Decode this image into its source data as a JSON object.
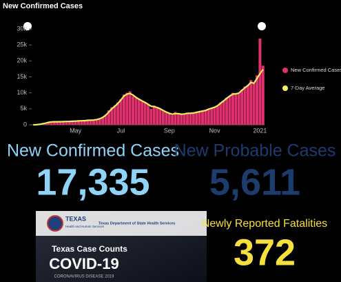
{
  "chart_data": {
    "type": "bar",
    "title": "New Confirmed Cases",
    "categories": [
      null,
      null,
      null,
      null,
      null,
      null,
      null,
      null,
      null,
      null,
      null,
      null,
      null,
      null,
      "May",
      null,
      null,
      null,
      null,
      null,
      null,
      null,
      null,
      null,
      null,
      null,
      null,
      null,
      null,
      "Jul",
      null,
      null,
      null,
      null,
      null,
      null,
      null,
      null,
      null,
      null,
      null,
      null,
      null,
      null,
      null,
      "Sep",
      null,
      null,
      null,
      null,
      null,
      null,
      null,
      null,
      null,
      null,
      null,
      null,
      null,
      null,
      "Nov",
      null,
      null,
      null,
      null,
      null,
      null,
      null,
      null,
      null,
      null,
      null,
      null,
      null,
      null,
      "2021",
      null
    ],
    "series": [
      {
        "name": "New Confirmed Cases",
        "type": "bar",
        "color": "#e0306e",
        "values": [
          10,
          50,
          200,
          400,
          600,
          900,
          1000,
          1000,
          900,
          1000,
          1100,
          1000,
          1100,
          1200,
          1100,
          1300,
          1200,
          1400,
          1500,
          1500,
          1600,
          1700,
          2000,
          2500,
          3200,
          4500,
          5500,
          6000,
          7000,
          8000,
          9500,
          10000,
          10500,
          9000,
          8500,
          8000,
          7500,
          7000,
          6500,
          5000,
          6000,
          5500,
          5000,
          4500,
          4000,
          3500,
          3000,
          4000,
          3500,
          3200,
          3500,
          3800,
          3500,
          3800,
          4000,
          4200,
          4300,
          4500,
          5000,
          5200,
          5500,
          6000,
          7000,
          7500,
          8500,
          9000,
          10000,
          9500,
          10000,
          11000,
          12000,
          12500,
          14000,
          13000,
          15500,
          27000,
          18500
        ]
      },
      {
        "name": "7-Day Average",
        "type": "line",
        "color": "#f5f060",
        "values": [
          10,
          30,
          120,
          300,
          500,
          750,
          900,
          950,
          950,
          970,
          1000,
          1030,
          1050,
          1100,
          1150,
          1200,
          1250,
          1300,
          1400,
          1450,
          1500,
          1650,
          1900,
          2300,
          3000,
          4000,
          5000,
          5800,
          6700,
          7800,
          9000,
          9600,
          9800,
          9300,
          8600,
          8000,
          7500,
          7000,
          6400,
          5800,
          5700,
          5400,
          5000,
          4500,
          4000,
          3600,
          3300,
          3500,
          3500,
          3300,
          3400,
          3600,
          3600,
          3700,
          3900,
          4100,
          4300,
          4500,
          4900,
          5200,
          5500,
          6000,
          6800,
          7500,
          8300,
          9000,
          9600,
          9700,
          9900,
          10800,
          11600,
          12300,
          13300,
          13000,
          14500,
          16000,
          17300
        ]
      }
    ],
    "ylim": [
      0,
      30000
    ],
    "yticks": [
      0,
      {
        "value": 5000,
        "label": "5k"
      },
      {
        "value": 10000,
        "label": "10k"
      },
      {
        "value": 15000,
        "label": "15k"
      },
      {
        "value": 20000,
        "label": "20k"
      },
      {
        "value": 25000,
        "label": "25k"
      },
      {
        "value": 30000,
        "label": "30k"
      }
    ]
  },
  "stats": [
    {
      "label": "New Confirmed Cases",
      "value": "17,335",
      "color": "#8fd3f7"
    },
    {
      "label": "New Probable Cases",
      "value": "5,611",
      "color": "#1c3c6e"
    },
    {
      "label": "Newly Reported Fatalities",
      "value": "372",
      "color": "#f7e03c"
    }
  ],
  "banner": {
    "agency": "TEXAS",
    "agency_sub": "Health and Human Services",
    "department": "Texas Department of State Health Services",
    "heading": "Texas Case Counts",
    "title": "COVID-19",
    "subtitle": "CORONAVIRUS DISEASE 2019"
  }
}
